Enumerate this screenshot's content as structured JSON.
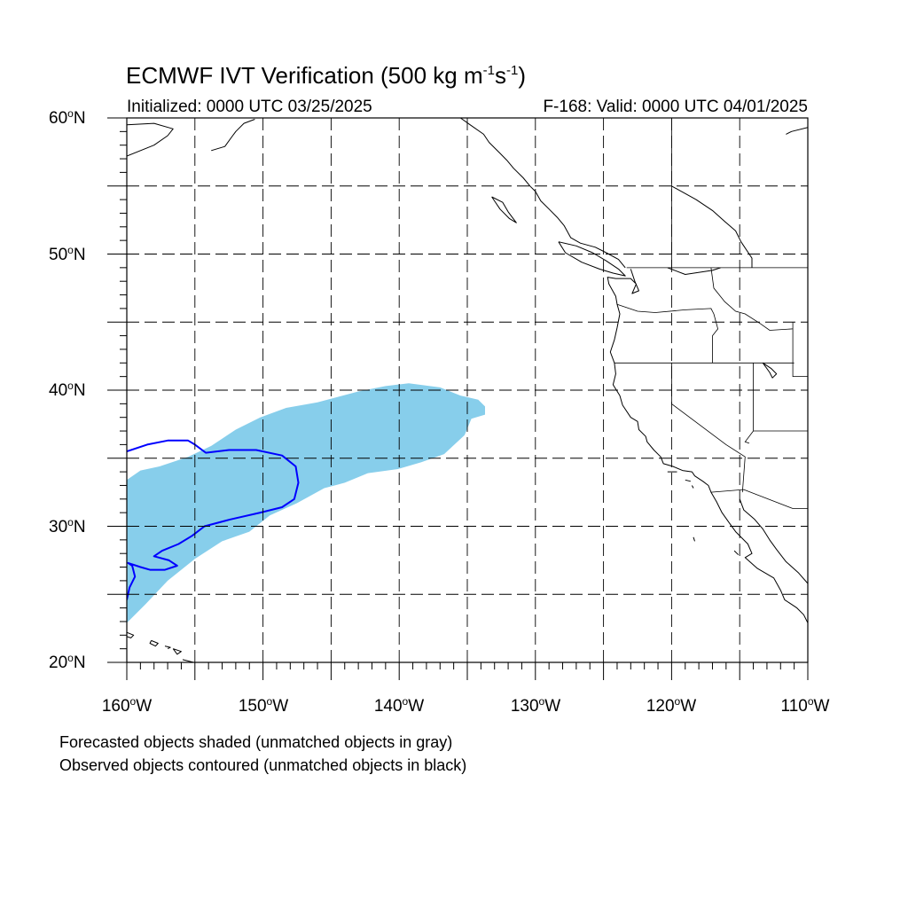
{
  "title": {
    "main": "ECMWF IVT Verification (500 kg m",
    "exp1": "-1",
    "mid": "s",
    "exp2": "-1",
    "close": ")"
  },
  "subtitle_left": "Initialized: 0000 UTC 03/25/2025",
  "subtitle_right": "F-168: Valid: 0000 UTC 04/01/2025",
  "map": {
    "projection": "cylindrical-equidistant",
    "lon_range": [
      -160,
      -110
    ],
    "lat_range": [
      20,
      60
    ],
    "grid_lines_lon": [
      -155,
      -150,
      -145,
      -140,
      -135,
      -130,
      -125,
      -120,
      -115
    ],
    "grid_lines_lat": [
      25,
      30,
      35,
      40,
      45,
      50,
      55
    ],
    "grid_style": "dashed",
    "lat_labels": [
      {
        "value": 60,
        "num": "60",
        "hemi": "N"
      },
      {
        "value": 50,
        "num": "50",
        "hemi": "N"
      },
      {
        "value": 40,
        "num": "40",
        "hemi": "N"
      },
      {
        "value": 30,
        "num": "30",
        "hemi": "N"
      },
      {
        "value": 20,
        "num": "20",
        "hemi": "N"
      }
    ],
    "lon_labels": [
      {
        "value": -160,
        "num": "160",
        "hemi": "W"
      },
      {
        "value": -150,
        "num": "150",
        "hemi": "W"
      },
      {
        "value": -140,
        "num": "140",
        "hemi": "W"
      },
      {
        "value": -130,
        "num": "130",
        "hemi": "W"
      },
      {
        "value": -120,
        "num": "120",
        "hemi": "W"
      },
      {
        "value": -110,
        "num": "110",
        "hemi": "W"
      }
    ],
    "forecast_object_color": "#87CEEB",
    "observed_contour_color": "#0000FF",
    "coastline_color": "#000000",
    "forecast_object": [
      [
        -160,
        22.9
      ],
      [
        -158.6,
        24.3
      ],
      [
        -157,
        26.0
      ],
      [
        -155,
        27.6
      ],
      [
        -153,
        28.9
      ],
      [
        -151,
        29.6
      ],
      [
        -149.5,
        30.8
      ],
      [
        -147.5,
        31.7
      ],
      [
        -145.5,
        32.8
      ],
      [
        -144,
        33.2
      ],
      [
        -142.3,
        33.9
      ],
      [
        -140.1,
        34.2
      ],
      [
        -138.4,
        34.7
      ],
      [
        -136.7,
        35.3
      ],
      [
        -135.2,
        36.7
      ],
      [
        -134.7,
        37.9
      ],
      [
        -133.7,
        38.2
      ],
      [
        -133.7,
        38.8
      ],
      [
        -134.2,
        39.3
      ],
      [
        -135.5,
        39.6
      ],
      [
        -137,
        40.2
      ],
      [
        -139.3,
        40.5
      ],
      [
        -141,
        40.3
      ],
      [
        -143,
        39.9
      ],
      [
        -146,
        39.1
      ],
      [
        -148.3,
        38.7
      ],
      [
        -150.2,
        38.0
      ],
      [
        -152,
        37.1
      ],
      [
        -153.8,
        35.9
      ],
      [
        -155.5,
        35.1
      ],
      [
        -157.6,
        34.4
      ],
      [
        -159,
        34.1
      ],
      [
        -160,
        33.4
      ]
    ],
    "observed_contours": [
      [
        [
          -160,
          35.5
        ],
        [
          -158.5,
          36.0
        ],
        [
          -157,
          36.3
        ],
        [
          -155.5,
          36.3
        ],
        [
          -155,
          36.0
        ],
        [
          -154.2,
          35.4
        ],
        [
          -152.5,
          35.6
        ],
        [
          -150.5,
          35.6
        ],
        [
          -148.6,
          35.2
        ],
        [
          -147.6,
          34.4
        ],
        [
          -147.4,
          33.2
        ],
        [
          -147.7,
          32.0
        ],
        [
          -148.6,
          31.4
        ],
        [
          -150.2,
          31.0
        ],
        [
          -152.4,
          30.5
        ],
        [
          -154.3,
          30.0
        ],
        [
          -155.2,
          29.3
        ],
        [
          -156.2,
          28.7
        ],
        [
          -157.4,
          28.2
        ],
        [
          -158,
          27.8
        ],
        [
          -156.9,
          27.5
        ],
        [
          -156.3,
          27.1
        ],
        [
          -157.2,
          26.8
        ],
        [
          -158.3,
          26.8
        ],
        [
          -159,
          27.0
        ],
        [
          -159.9,
          27.3
        ],
        [
          -159.6,
          27.1
        ],
        [
          -159.4,
          26.3
        ],
        [
          -159.8,
          25.5
        ],
        [
          -160,
          24.6
        ]
      ]
    ],
    "coastlines": [
      [
        [
          -160,
          57.2
        ],
        [
          -158,
          58.0
        ],
        [
          -157,
          58.7
        ],
        [
          -156.6,
          59.2
        ],
        [
          -158,
          59.6
        ],
        [
          -160,
          59.5
        ]
      ],
      [
        [
          -153.8,
          57.6
        ],
        [
          -152.8,
          57.9
        ],
        [
          -152.3,
          58.6
        ],
        [
          -152.0,
          59.0
        ],
        [
          -151.4,
          59.6
        ],
        [
          -150.6,
          59.9
        ]
      ],
      [
        [
          -135.5,
          60
        ],
        [
          -134.8,
          59.5
        ],
        [
          -133.8,
          58.8
        ],
        [
          -133.4,
          58.2
        ],
        [
          -132.6,
          57.4
        ],
        [
          -132.1,
          56.9
        ],
        [
          -131.6,
          56.3
        ],
        [
          -130.9,
          55.6
        ],
        [
          -130.4,
          55.0
        ],
        [
          -130.0,
          54.6
        ],
        [
          -129.6,
          53.9
        ],
        [
          -129.0,
          53.3
        ],
        [
          -128.4,
          52.7
        ],
        [
          -127.9,
          52.1
        ],
        [
          -127.4,
          51.2
        ],
        [
          -126.7,
          50.8
        ],
        [
          -125.6,
          50.5
        ],
        [
          -124.8,
          50.1
        ],
        [
          -123.9,
          49.6
        ],
        [
          -123.4,
          49.0
        ]
      ],
      [
        [
          -133.2,
          54.2
        ],
        [
          -132.4,
          53.8
        ],
        [
          -132.0,
          53.1
        ],
        [
          -131.4,
          52.3
        ],
        [
          -131.9,
          52.6
        ],
        [
          -132.6,
          53.3
        ],
        [
          -133.0,
          53.9
        ],
        [
          -133.2,
          54.2
        ]
      ],
      [
        [
          -128.3,
          50.9
        ],
        [
          -127.0,
          50.6
        ],
        [
          -125.8,
          50.1
        ],
        [
          -124.8,
          49.5
        ],
        [
          -123.9,
          48.9
        ],
        [
          -123.4,
          48.4
        ],
        [
          -124.3,
          48.6
        ],
        [
          -125.3,
          48.9
        ],
        [
          -126.6,
          49.4
        ],
        [
          -127.8,
          50.1
        ],
        [
          -128.3,
          50.9
        ]
      ],
      [
        [
          -123.0,
          48.9
        ],
        [
          -122.7,
          48.0
        ],
        [
          -122.4,
          47.3
        ],
        [
          -122.9,
          47.1
        ],
        [
          -122.6,
          47.8
        ],
        [
          -123.0,
          48.2
        ],
        [
          -124.1,
          48.2
        ],
        [
          -124.7,
          48.3
        ],
        [
          -124.6,
          47.8
        ],
        [
          -124.1,
          46.9
        ],
        [
          -124.0,
          46.3
        ],
        [
          -123.8,
          45.6
        ],
        [
          -124.0,
          44.6
        ],
        [
          -124.2,
          43.7
        ],
        [
          -124.5,
          42.8
        ],
        [
          -124.2,
          42.0
        ],
        [
          -124.1,
          41.2
        ],
        [
          -124.3,
          40.4
        ],
        [
          -123.8,
          39.6
        ],
        [
          -123.6,
          38.9
        ],
        [
          -123.0,
          38.0
        ],
        [
          -122.5,
          37.7
        ],
        [
          -122.4,
          37.1
        ],
        [
          -121.9,
          36.6
        ],
        [
          -121.8,
          36.2
        ],
        [
          -121.3,
          35.6
        ],
        [
          -120.8,
          35.1
        ],
        [
          -120.6,
          34.6
        ],
        [
          -119.9,
          34.4
        ],
        [
          -119.2,
          34.1
        ],
        [
          -118.5,
          34.0
        ],
        [
          -118.3,
          33.7
        ],
        [
          -117.7,
          33.3
        ],
        [
          -117.3,
          33.0
        ],
        [
          -117.1,
          32.5
        ],
        [
          -116.7,
          31.8
        ],
        [
          -116.3,
          31.0
        ],
        [
          -115.8,
          30.3
        ],
        [
          -115.3,
          29.6
        ],
        [
          -114.4,
          28.7
        ],
        [
          -114.1,
          28.0
        ],
        [
          -114.6,
          27.7
        ],
        [
          -113.7,
          26.9
        ],
        [
          -112.5,
          26.2
        ],
        [
          -112.0,
          25.3
        ],
        [
          -111.7,
          24.6
        ],
        [
          -110.8,
          24.0
        ],
        [
          -110.3,
          23.5
        ],
        [
          -110.0,
          22.9
        ]
      ],
      [
        [
          -115.0,
          32.0
        ],
        [
          -114.7,
          31.2
        ],
        [
          -113.9,
          30.5
        ],
        [
          -113.3,
          29.8
        ],
        [
          -112.8,
          29.0
        ],
        [
          -112.3,
          28.3
        ],
        [
          -111.6,
          27.4
        ],
        [
          -110.7,
          26.6
        ],
        [
          -110.0,
          25.8
        ]
      ],
      [
        [
          -160,
          22.2
        ],
        [
          -159.5,
          22.0
        ],
        [
          -159.7,
          21.8
        ],
        [
          -160,
          21.9
        ]
      ],
      [
        [
          -158.2,
          21.6
        ],
        [
          -157.7,
          21.4
        ],
        [
          -157.9,
          21.2
        ],
        [
          -158.3,
          21.4
        ],
        [
          -158.2,
          21.6
        ]
      ],
      [
        [
          -157.2,
          21.2
        ],
        [
          -156.8,
          21.1
        ],
        [
          -157.0,
          21.0
        ]
      ],
      [
        [
          -156.6,
          21.0
        ],
        [
          -156.0,
          20.8
        ],
        [
          -156.3,
          20.6
        ],
        [
          -156.6,
          21.0
        ]
      ],
      [
        [
          -155.9,
          20.2
        ],
        [
          -155.1,
          20.0
        ],
        [
          -155.2,
          19.5
        ]
      ],
      [
        [
          -120.3,
          34.0
        ],
        [
          -119.6,
          34.0
        ]
      ],
      [
        [
          -119.0,
          33.4
        ],
        [
          -118.6,
          33.3
        ]
      ],
      [
        [
          -118.5,
          33.0
        ],
        [
          -118.4,
          32.8
        ]
      ],
      [
        [
          -118.4,
          29.2
        ],
        [
          -118.3,
          28.9
        ]
      ],
      [
        [
          -115.4,
          28.2
        ],
        [
          -115.1,
          27.9
        ]
      ],
      [
        [
          -113.3,
          42.0
        ],
        [
          -112.7,
          41.6
        ],
        [
          -112.3,
          41.2
        ],
        [
          -112.6,
          40.9
        ],
        [
          -112.8,
          41.3
        ],
        [
          -113.3,
          42.0
        ]
      ],
      [
        [
          -120.0,
          55.0
        ],
        [
          -118.2,
          54.0
        ],
        [
          -117.0,
          53.2
        ],
        [
          -116.1,
          52.4
        ],
        [
          -115.3,
          51.7
        ],
        [
          -114.9,
          50.9
        ],
        [
          -114.1,
          49.7
        ],
        [
          -114.1,
          49.0
        ]
      ],
      [
        [
          -120.3,
          49.0
        ],
        [
          -119.0,
          48.5
        ],
        [
          -117.0,
          48.8
        ],
        [
          -116.4,
          49.0
        ]
      ],
      [
        [
          -110,
          59.3
        ],
        [
          -111.2,
          59.0
        ],
        [
          -111.6,
          58.8
        ]
      ]
    ],
    "borders": [
      [
        [
          -123.3,
          49.0
        ],
        [
          -110,
          49.0
        ]
      ],
      [
        [
          -120.0,
          49.0
        ],
        [
          -120.0,
          53.5
        ],
        [
          -120.0,
          60
        ]
      ],
      [
        [
          -124.0,
          46.3
        ],
        [
          -122.5,
          45.8
        ],
        [
          -121.2,
          45.7
        ],
        [
          -119.0,
          45.9
        ],
        [
          -117.1,
          46.0
        ],
        [
          -116.9,
          45.6
        ],
        [
          -116.6,
          44.5
        ],
        [
          -117.0,
          44.0
        ],
        [
          -117.0,
          42.0
        ]
      ],
      [
        [
          -124.2,
          42.0
        ],
        [
          -120.0,
          42.0
        ],
        [
          -117.0,
          42.0
        ],
        [
          -114.0,
          42.0
        ],
        [
          -111.0,
          42.0
        ]
      ],
      [
        [
          -120.0,
          42.0
        ],
        [
          -120.0,
          39.0
        ],
        [
          -116.0,
          36.0
        ],
        [
          -114.6,
          35.1
        ],
        [
          -114.8,
          32.5
        ]
      ],
      [
        [
          -117.1,
          49.0
        ],
        [
          -116.9,
          47.5
        ],
        [
          -116.1,
          46.5
        ],
        [
          -115.3,
          45.8
        ],
        [
          -114.6,
          45.6
        ],
        [
          -113.5,
          44.9
        ],
        [
          -112.8,
          44.4
        ],
        [
          -111.1,
          44.5
        ]
      ],
      [
        [
          -111.1,
          45.0
        ],
        [
          -111.1,
          41.0
        ],
        [
          -110,
          41.0
        ]
      ],
      [
        [
          -114.0,
          42.0
        ],
        [
          -114.0,
          37.0
        ],
        [
          -114.6,
          36.2
        ],
        [
          -114.3,
          36.1
        ]
      ],
      [
        [
          -114.0,
          37.0
        ],
        [
          -110,
          37.0
        ]
      ],
      [
        [
          -117.1,
          32.5
        ],
        [
          -114.7,
          32.7
        ],
        [
          -111.1,
          31.3
        ],
        [
          -110,
          31.3
        ]
      ]
    ]
  },
  "footnotes": [
    "Forecasted objects shaded (unmatched objects in gray)",
    "Observed objects contoured (unmatched objects in black)"
  ]
}
